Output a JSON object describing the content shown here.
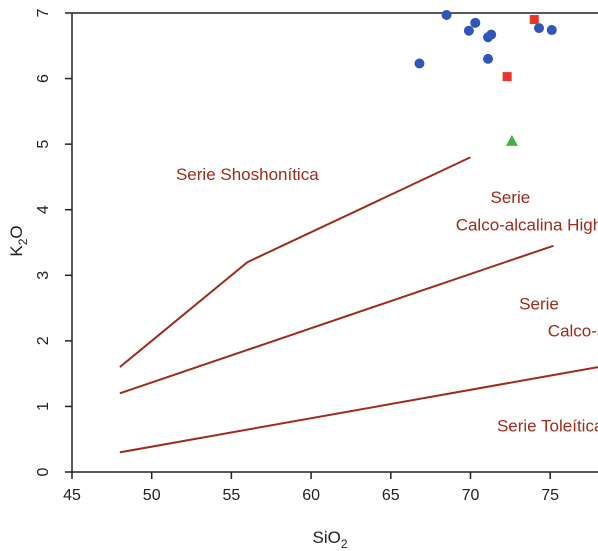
{
  "chart_data": {
    "type": "scatter",
    "title": "",
    "xlabel": "SiO",
    "xlabel_sub": "2",
    "ylabel_main": "K",
    "ylabel_sub": "2",
    "ylabel_end": "O",
    "xlim": [
      45,
      78
    ],
    "ylim": [
      0,
      7
    ],
    "xticks": [
      45,
      50,
      55,
      60,
      65,
      70,
      75
    ],
    "yticks": [
      0,
      1,
      2,
      3,
      4,
      5,
      6,
      7
    ],
    "grid": false,
    "line_color": "#a02a1c",
    "boundary_lines": [
      {
        "points": [
          [
            48,
            1.6
          ],
          [
            56,
            3.2
          ],
          [
            70,
            4.8
          ]
        ]
      },
      {
        "points": [
          [
            48,
            1.2
          ],
          [
            75.2,
            3.45
          ]
        ]
      },
      {
        "points": [
          [
            48,
            0.3
          ],
          [
            78,
            1.6
          ]
        ]
      }
    ],
    "series": [
      {
        "marker": "circle",
        "color": "#2f56b8",
        "points": [
          [
            66.8,
            6.23
          ],
          [
            68.5,
            6.97
          ],
          [
            69.9,
            6.73
          ],
          [
            70.3,
            6.85
          ],
          [
            71.1,
            6.63
          ],
          [
            71.3,
            6.67
          ],
          [
            71.1,
            6.3
          ],
          [
            74.3,
            6.77
          ],
          [
            75.1,
            6.74
          ]
        ]
      },
      {
        "marker": "square",
        "color": "#e8352a",
        "points": [
          [
            72.3,
            6.03
          ],
          [
            74.0,
            6.9
          ]
        ]
      },
      {
        "marker": "triangle",
        "color": "#45b04a",
        "points": [
          [
            72.6,
            5.05
          ]
        ]
      }
    ],
    "annotations": [
      {
        "id": "shoshonitica",
        "text": "Serie Shoshonítica",
        "x": 56.0,
        "y": 4.45,
        "anchor": "middle"
      },
      {
        "id": "highk-1",
        "text": "Serie",
        "x": 72.5,
        "y": 4.1,
        "anchor": "middle"
      },
      {
        "id": "highk-2",
        "text": "Calco-alcalina High-K",
        "x": 74.2,
        "y": 3.68,
        "anchor": "middle"
      },
      {
        "id": "calco-1",
        "text": "Serie",
        "x": 74.3,
        "y": 2.48,
        "anchor": "middle"
      },
      {
        "id": "calco-2",
        "text": "Calco-alcalina",
        "x": 78.2,
        "y": 2.07,
        "anchor": "middle"
      },
      {
        "id": "toleitica",
        "text": "Serie Toleítica",
        "x": 75.0,
        "y": 0.62,
        "anchor": "middle"
      }
    ]
  }
}
